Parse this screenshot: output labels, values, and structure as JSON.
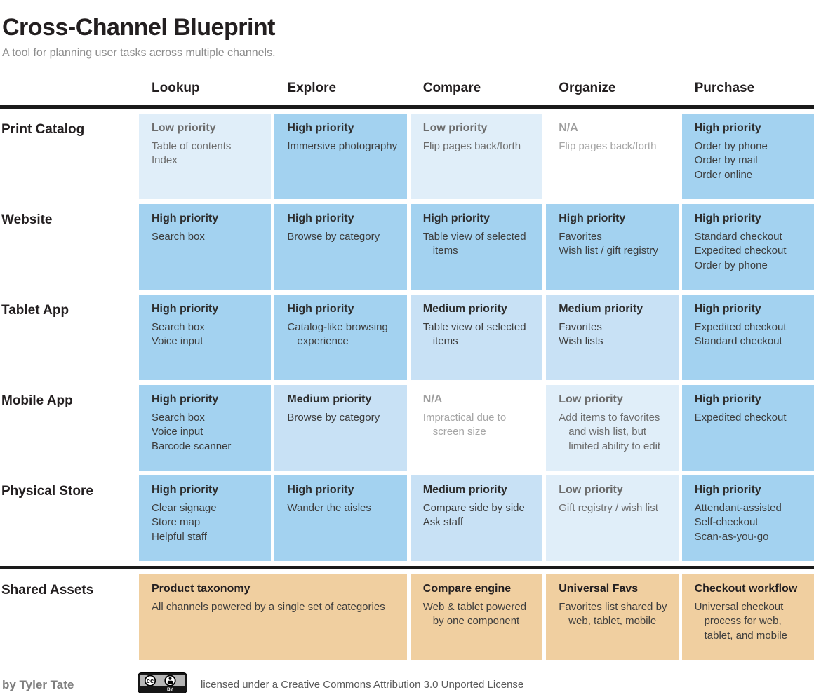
{
  "header": {
    "title": "Cross-Channel Blueprint",
    "subtitle": "A tool for planning user tasks across multiple channels."
  },
  "columns": [
    "Lookup",
    "Explore",
    "Compare",
    "Organize",
    "Purchase"
  ],
  "rows": [
    {
      "label": "Print Catalog",
      "cells": [
        {
          "level": "low",
          "title": "Low priority",
          "items": [
            "Table of contents",
            "Index"
          ]
        },
        {
          "level": "high",
          "title": "High priority",
          "items": [
            "Immersive photography"
          ]
        },
        {
          "level": "low",
          "title": "Low priority",
          "items": [
            "Flip pages back/forth"
          ]
        },
        {
          "level": "na",
          "title": "N/A",
          "items": [
            "Flip pages back/forth"
          ]
        },
        {
          "level": "high",
          "title": "High priority",
          "items": [
            "Order by phone",
            "Order by mail",
            "Order online"
          ]
        }
      ]
    },
    {
      "label": "Website",
      "cells": [
        {
          "level": "high",
          "title": "High priority",
          "items": [
            "Search box"
          ]
        },
        {
          "level": "high",
          "title": "High priority",
          "items": [
            "Browse by category"
          ]
        },
        {
          "level": "high",
          "title": "High priority",
          "items": [
            "Table view of selected items"
          ]
        },
        {
          "level": "high",
          "title": "High priority",
          "items": [
            "Favorites",
            "Wish list / gift registry"
          ]
        },
        {
          "level": "high",
          "title": "High priority",
          "items": [
            "Standard checkout",
            "Expedited checkout",
            "Order by phone"
          ]
        }
      ]
    },
    {
      "label": "Tablet App",
      "cells": [
        {
          "level": "high",
          "title": "High priority",
          "items": [
            "Search box",
            "Voice input"
          ]
        },
        {
          "level": "high",
          "title": "High priority",
          "items": [
            "Catalog-like browsing experience"
          ]
        },
        {
          "level": "medium",
          "title": "Medium priority",
          "items": [
            "Table view of selected items"
          ]
        },
        {
          "level": "medium",
          "title": "Medium priority",
          "items": [
            "Favorites",
            "Wish lists"
          ]
        },
        {
          "level": "high",
          "title": "High priority",
          "items": [
            "Expedited checkout",
            "Standard checkout"
          ]
        }
      ]
    },
    {
      "label": "Mobile App",
      "cells": [
        {
          "level": "high",
          "title": "High priority",
          "items": [
            "Search box",
            "Voice input",
            "Barcode scanner"
          ]
        },
        {
          "level": "medium",
          "title": "Medium priority",
          "items": [
            "Browse by category"
          ]
        },
        {
          "level": "na",
          "title": "N/A",
          "items": [
            "Impractical due to screen size"
          ]
        },
        {
          "level": "low",
          "title": "Low priority",
          "items": [
            "Add items to favorites and wish list, but limited ability to edit"
          ]
        },
        {
          "level": "high",
          "title": "High priority",
          "items": [
            "Expedited checkout"
          ]
        }
      ]
    },
    {
      "label": "Physical Store",
      "cells": [
        {
          "level": "high",
          "title": "High priority",
          "items": [
            "Clear signage",
            "Store map",
            "Helpful staff"
          ]
        },
        {
          "level": "high",
          "title": "High priority",
          "items": [
            "Wander the aisles"
          ]
        },
        {
          "level": "medium",
          "title": "Medium priority",
          "items": [
            "Compare side by side",
            "Ask staff"
          ]
        },
        {
          "level": "low",
          "title": "Low priority",
          "items": [
            "Gift registry / wish list"
          ]
        },
        {
          "level": "high",
          "title": "High priority",
          "items": [
            "Attendant-assisted",
            "Self-checkout",
            "Scan-as-you-go"
          ]
        }
      ]
    }
  ],
  "shared_row": {
    "label": "Shared Assets",
    "cells": [
      {
        "level": "shared",
        "span": 2,
        "title": "Product taxonomy",
        "items": [
          "All channels powered by a single set of categories"
        ]
      },
      {
        "level": "shared",
        "span": 1,
        "title": "Compare engine",
        "items": [
          "Web & tablet powered by one component"
        ]
      },
      {
        "level": "shared",
        "span": 1,
        "title": "Universal Favs",
        "items": [
          "Favorites list shared by web, tablet, mobile"
        ]
      },
      {
        "level": "shared",
        "span": 1,
        "title": "Checkout workflow",
        "items": [
          "Universal checkout process for web, tablet, and mobile"
        ]
      }
    ]
  },
  "footer": {
    "byline": "by Tyler Tate",
    "cc_badge_label": "BY",
    "cc_logo_text": "cc",
    "license": "licensed under a Creative Commons Attribution 3.0 Unported License"
  },
  "colors": {
    "high": "#a3d2f0",
    "medium": "#c8e1f5",
    "low": "#e0eef9",
    "na": "#ffffff",
    "shared": "#f0cfa0",
    "rule": "#1a1a1a"
  }
}
